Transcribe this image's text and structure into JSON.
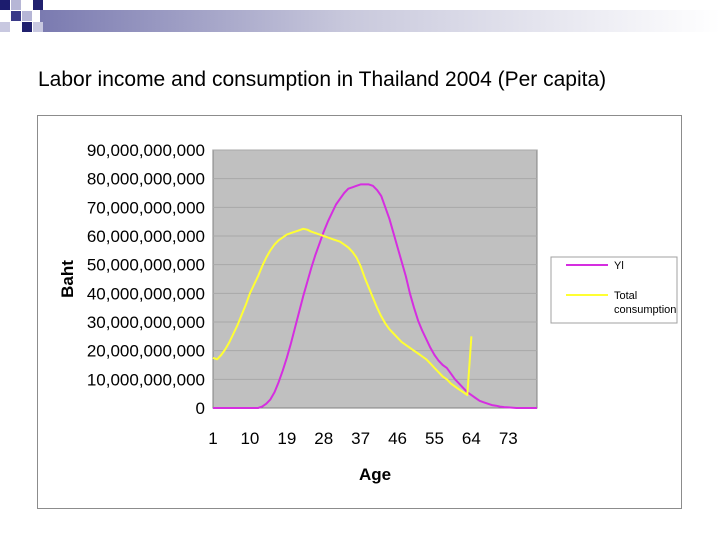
{
  "slide": {
    "title": "Labor income and consumption in Thailand 2004 (Per capita)"
  },
  "colors": {
    "plot_background": "#c0c0c0",
    "gridline": "#a8a8a8",
    "yl_line": "#d52ee0",
    "consumption_line": "#ffff33",
    "frame_border": "#8c8c8c"
  },
  "chart_data": {
    "type": "line",
    "title": "",
    "xlabel": "Age",
    "ylabel": "Baht",
    "ylim": [
      0,
      90000000000
    ],
    "y_ticks": [
      0,
      10000000000,
      20000000000,
      30000000000,
      40000000000,
      50000000000,
      60000000000,
      70000000000,
      80000000000,
      90000000000
    ],
    "y_tick_labels": [
      "0",
      "10,000,000,000",
      "20,000,000,000",
      "30,000,000,000",
      "40,000,000,000",
      "50,000,000,000",
      "60,000,000,000",
      "70,000,000,000",
      "80,000,000,000",
      "90,000,000,000"
    ],
    "x_range": [
      1,
      80
    ],
    "x_tick_labels": [
      "1",
      "10",
      "19",
      "28",
      "37",
      "46",
      "55",
      "64",
      "73"
    ],
    "grid": "horizontal",
    "legend_position": "right",
    "series": [
      {
        "name": "Yl",
        "color": "#d52ee0",
        "points": [
          [
            1,
            0
          ],
          [
            5,
            0
          ],
          [
            10,
            0
          ],
          [
            12,
            0
          ],
          [
            13,
            500000000
          ],
          [
            14,
            1500000000
          ],
          [
            15,
            3000000000
          ],
          [
            16,
            5500000000
          ],
          [
            17,
            9000000000
          ],
          [
            18,
            13000000000
          ],
          [
            19,
            17500000000
          ],
          [
            20,
            22500000000
          ],
          [
            21,
            28000000000
          ],
          [
            22,
            33500000000
          ],
          [
            23,
            39000000000
          ],
          [
            24,
            44000000000
          ],
          [
            25,
            49000000000
          ],
          [
            26,
            53500000000
          ],
          [
            27,
            57500000000
          ],
          [
            28,
            61500000000
          ],
          [
            29,
            65000000000
          ],
          [
            30,
            68000000000
          ],
          [
            31,
            71000000000
          ],
          [
            32,
            73000000000
          ],
          [
            33,
            75000000000
          ],
          [
            34,
            76500000000
          ],
          [
            35,
            77000000000
          ],
          [
            36,
            77500000000
          ],
          [
            37,
            78000000000
          ],
          [
            38,
            78000000000
          ],
          [
            39,
            78000000000
          ],
          [
            40,
            77500000000
          ],
          [
            41,
            76000000000
          ],
          [
            42,
            74000000000
          ],
          [
            43,
            70000000000
          ],
          [
            44,
            66000000000
          ],
          [
            45,
            61000000000
          ],
          [
            46,
            56000000000
          ],
          [
            47,
            51000000000
          ],
          [
            48,
            46000000000
          ],
          [
            49,
            40000000000
          ],
          [
            50,
            35000000000
          ],
          [
            51,
            30500000000
          ],
          [
            52,
            27000000000
          ],
          [
            53,
            24000000000
          ],
          [
            54,
            21000000000
          ],
          [
            55,
            18500000000
          ],
          [
            56,
            16500000000
          ],
          [
            57,
            15000000000
          ],
          [
            58,
            14000000000
          ],
          [
            59,
            12000000000
          ],
          [
            60,
            10000000000
          ],
          [
            61,
            8500000000
          ],
          [
            62,
            7000000000
          ],
          [
            63,
            5500000000
          ],
          [
            64,
            4500000000
          ],
          [
            65,
            3500000000
          ],
          [
            66,
            2500000000
          ],
          [
            67,
            2000000000
          ],
          [
            68,
            1500000000
          ],
          [
            69,
            1000000000
          ],
          [
            70,
            800000000
          ],
          [
            71,
            500000000
          ],
          [
            72,
            300000000
          ],
          [
            73,
            200000000
          ],
          [
            75,
            0
          ],
          [
            80,
            0
          ]
        ]
      },
      {
        "name": "Total consumption",
        "color": "#ffff33",
        "points": [
          [
            1,
            17500000000
          ],
          [
            2,
            17000000000
          ],
          [
            3,
            18500000000
          ],
          [
            4,
            20500000000
          ],
          [
            5,
            23000000000
          ],
          [
            6,
            26000000000
          ],
          [
            7,
            29000000000
          ],
          [
            8,
            32500000000
          ],
          [
            9,
            36000000000
          ],
          [
            10,
            40000000000
          ],
          [
            11,
            43000000000
          ],
          [
            12,
            46000000000
          ],
          [
            13,
            49500000000
          ],
          [
            14,
            52500000000
          ],
          [
            15,
            55000000000
          ],
          [
            16,
            57000000000
          ],
          [
            17,
            58500000000
          ],
          [
            18,
            59500000000
          ],
          [
            19,
            60500000000
          ],
          [
            20,
            61000000000
          ],
          [
            21,
            61500000000
          ],
          [
            22,
            62000000000
          ],
          [
            23,
            62500000000
          ],
          [
            24,
            62200000000
          ],
          [
            25,
            61500000000
          ],
          [
            26,
            61000000000
          ],
          [
            27,
            60500000000
          ],
          [
            28,
            60000000000
          ],
          [
            29,
            59500000000
          ],
          [
            30,
            59000000000
          ],
          [
            31,
            58500000000
          ],
          [
            32,
            58000000000
          ],
          [
            33,
            57000000000
          ],
          [
            34,
            56000000000
          ],
          [
            35,
            54500000000
          ],
          [
            36,
            52500000000
          ],
          [
            37,
            49500000000
          ],
          [
            38,
            45500000000
          ],
          [
            39,
            42000000000
          ],
          [
            40,
            38500000000
          ],
          [
            41,
            35000000000
          ],
          [
            42,
            32000000000
          ],
          [
            43,
            29500000000
          ],
          [
            44,
            27500000000
          ],
          [
            45,
            26000000000
          ],
          [
            46,
            24500000000
          ],
          [
            47,
            23000000000
          ],
          [
            48,
            22000000000
          ],
          [
            49,
            21000000000
          ],
          [
            50,
            20000000000
          ],
          [
            51,
            19000000000
          ],
          [
            52,
            18000000000
          ],
          [
            53,
            17000000000
          ],
          [
            54,
            15500000000
          ],
          [
            55,
            14000000000
          ],
          [
            56,
            12500000000
          ],
          [
            57,
            11000000000
          ],
          [
            58,
            10000000000
          ],
          [
            59,
            8500000000
          ],
          [
            60,
            7500000000
          ],
          [
            61,
            6500000000
          ],
          [
            62,
            5500000000
          ],
          [
            63,
            4500000000
          ],
          [
            64,
            25000000000
          ]
        ]
      }
    ]
  }
}
